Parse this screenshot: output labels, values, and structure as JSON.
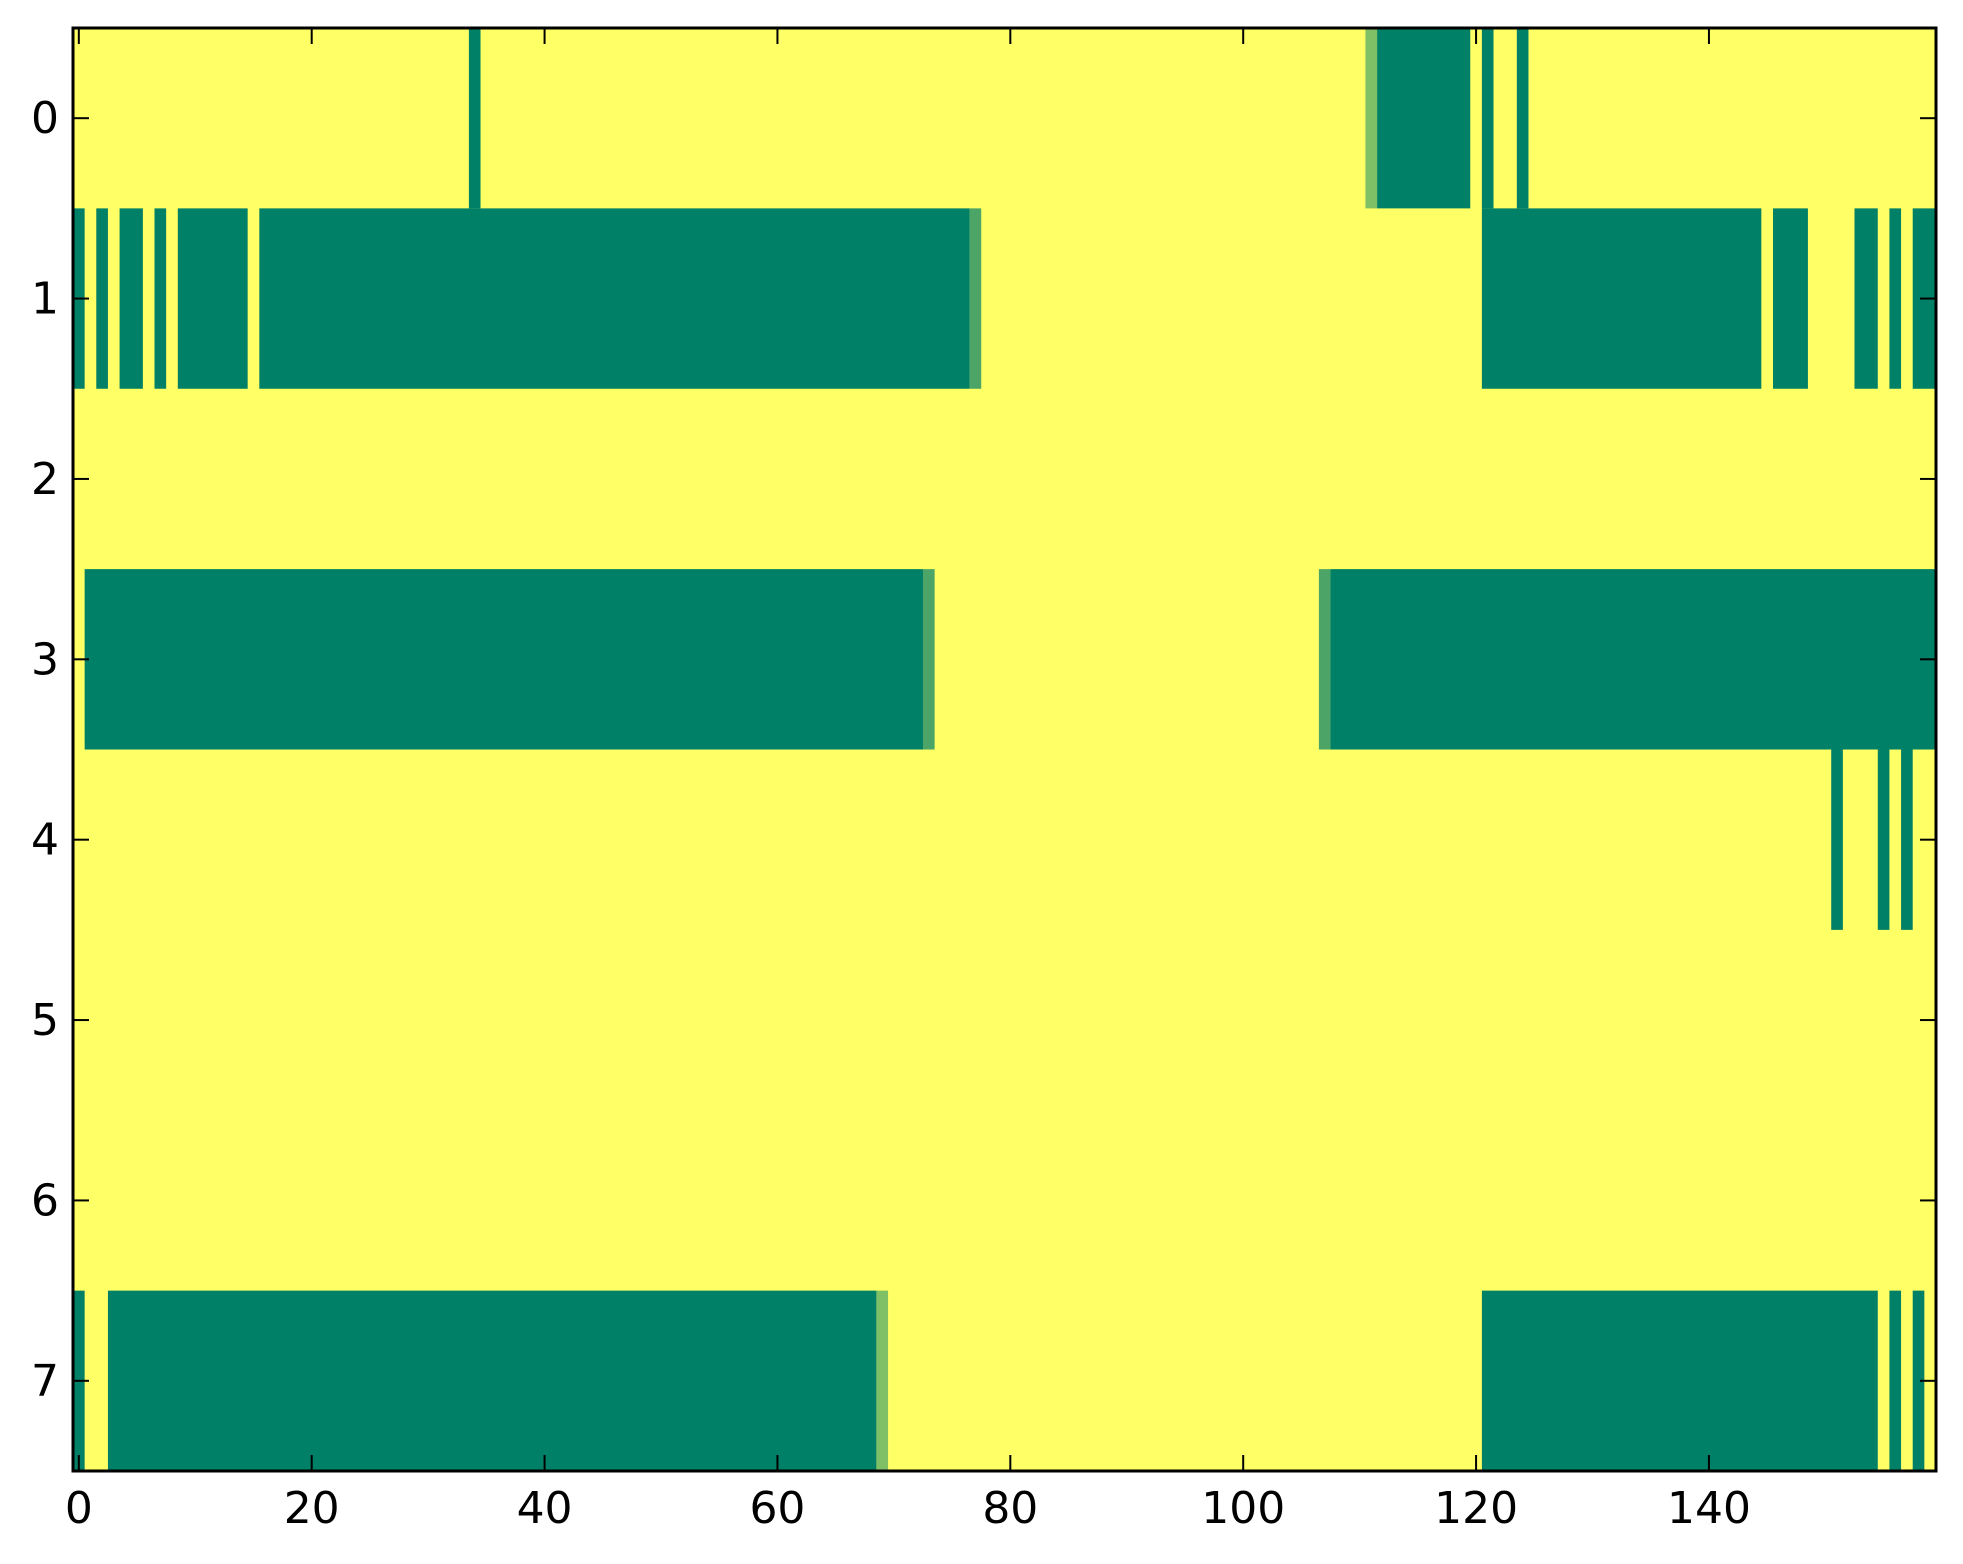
{
  "chart_data": {
    "type": "heatmap",
    "title": "",
    "xlabel": "",
    "ylabel": "",
    "xlim": [
      -0.5,
      159.5
    ],
    "ylim": [
      7.5,
      -0.5
    ],
    "xticks": [
      0,
      20,
      40,
      60,
      80,
      100,
      120,
      140
    ],
    "xtick_labels": [
      "0",
      "20",
      "40",
      "60",
      "80",
      "100",
      "120",
      "140"
    ],
    "yticks": [
      0,
      1,
      2,
      3,
      4,
      5,
      6,
      7
    ],
    "ytick_labels": [
      "0",
      "1",
      "2",
      "3",
      "4",
      "5",
      "6",
      "7"
    ],
    "grid": false,
    "colormap": "summer_r",
    "colors": {
      "low": "#ffff66",
      "high": "#008066",
      "mid_light": "#7fbf66",
      "mid_dark": "#4ca566"
    },
    "background_value": 0,
    "rows": 8,
    "columns": 160,
    "runs": [
      {
        "row": 0,
        "start": 34,
        "end": 34,
        "value": 1
      },
      {
        "row": 0,
        "start": 111,
        "end": 111,
        "value": 0.5
      },
      {
        "row": 0,
        "start": 112,
        "end": 119,
        "value": 1
      },
      {
        "row": 0,
        "start": 121,
        "end": 121,
        "value": 1
      },
      {
        "row": 0,
        "start": 124,
        "end": 124,
        "value": 1
      },
      {
        "row": 1,
        "start": 0,
        "end": 0,
        "value": 1
      },
      {
        "row": 1,
        "start": 2,
        "end": 2,
        "value": 1
      },
      {
        "row": 1,
        "start": 4,
        "end": 5,
        "value": 1
      },
      {
        "row": 1,
        "start": 7,
        "end": 7,
        "value": 1
      },
      {
        "row": 1,
        "start": 9,
        "end": 14,
        "value": 1
      },
      {
        "row": 1,
        "start": 16,
        "end": 76,
        "value": 1
      },
      {
        "row": 1,
        "start": 77,
        "end": 77,
        "value": 0.7
      },
      {
        "row": 1,
        "start": 121,
        "end": 144,
        "value": 1
      },
      {
        "row": 1,
        "start": 146,
        "end": 148,
        "value": 1
      },
      {
        "row": 1,
        "start": 153,
        "end": 154,
        "value": 1
      },
      {
        "row": 1,
        "start": 156,
        "end": 156,
        "value": 1
      },
      {
        "row": 1,
        "start": 158,
        "end": 159,
        "value": 1
      },
      {
        "row": 3,
        "start": 1,
        "end": 72,
        "value": 1
      },
      {
        "row": 3,
        "start": 73,
        "end": 73,
        "value": 0.7
      },
      {
        "row": 3,
        "start": 107,
        "end": 107,
        "value": 0.7
      },
      {
        "row": 3,
        "start": 108,
        "end": 159,
        "value": 1
      },
      {
        "row": 4,
        "start": 151,
        "end": 151,
        "value": 1
      },
      {
        "row": 4,
        "start": 155,
        "end": 155,
        "value": 1
      },
      {
        "row": 4,
        "start": 157,
        "end": 157,
        "value": 1
      },
      {
        "row": 7,
        "start": 0,
        "end": 0,
        "value": 1
      },
      {
        "row": 7,
        "start": 3,
        "end": 68,
        "value": 1
      },
      {
        "row": 7,
        "start": 69,
        "end": 69,
        "value": 0.5
      },
      {
        "row": 7,
        "start": 121,
        "end": 154,
        "value": 1
      },
      {
        "row": 7,
        "start": 156,
        "end": 156,
        "value": 1
      },
      {
        "row": 7,
        "start": 158,
        "end": 158,
        "value": 1
      }
    ]
  }
}
